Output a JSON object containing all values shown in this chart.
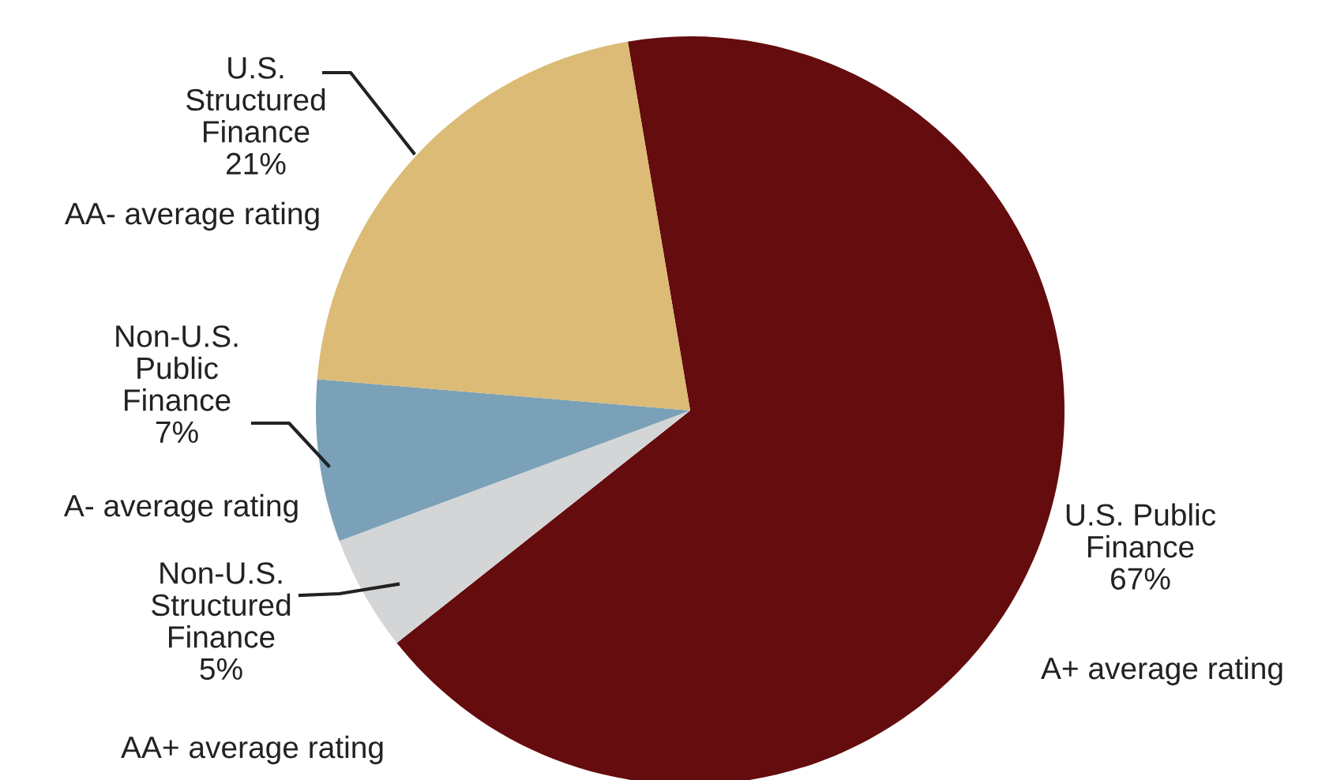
{
  "chart_data": {
    "type": "pie",
    "categories": [
      "U.S. Public\nFinance",
      "Non-U.S.\nStructured\nFinance",
      "Non-U.S.\nPublic\nFinance",
      "U.S.\nStructured\nFinance"
    ],
    "values": [
      67,
      5,
      7,
      21
    ],
    "value_labels": [
      "67%",
      "5%",
      "7%",
      "21%"
    ],
    "colors": [
      "#650c0e",
      "#d4d5d6",
      "#7aa1b7",
      "#dbbb75"
    ],
    "annotations": [
      "A+ average rating",
      "AA+ average rating",
      "A- average rating",
      "AA- average rating"
    ],
    "legend": false
  }
}
